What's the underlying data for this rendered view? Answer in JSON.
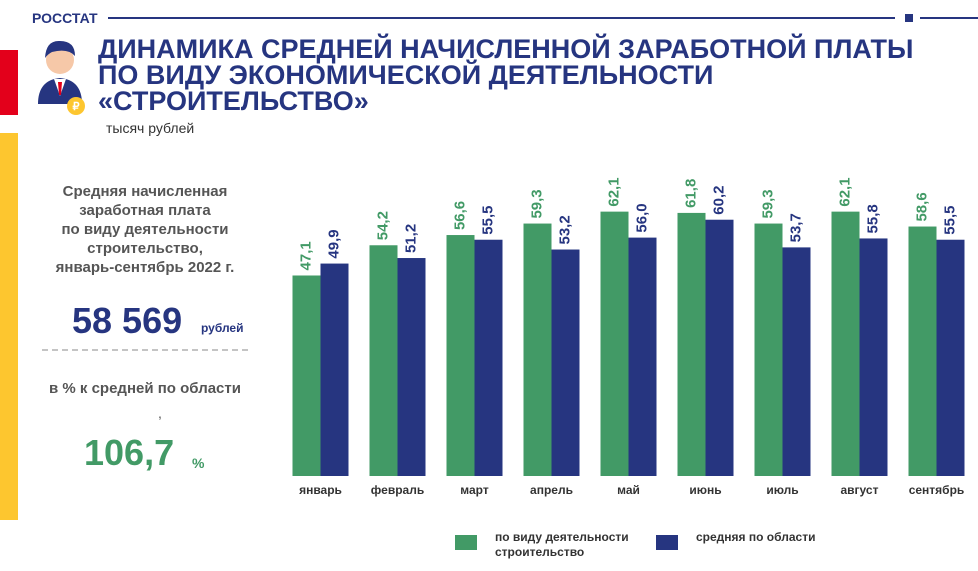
{
  "brand": "РОССТАТ",
  "unit": "тысяч рублей",
  "summary": {
    "caption": [
      "Средняя  начисленная",
      "заработная плата",
      "по виду деятельности",
      "строительство,",
      "январь-сентябрь 2022 г."
    ],
    "amount": "58 569",
    "amount_unit": "рублей",
    "ratio_caption": "в % к средней по области",
    "ratio_mark": ",",
    "ratio": "106,7",
    "ratio_unit": "%"
  },
  "chart_data": {
    "type": "bar",
    "title": [
      "ДИНАМИКА СРЕДНЕЙ НАЧИСЛЕННОЙ ЗАРАБОТНОЙ ПЛАТЫ",
      "ПО ВИДУ ЭКОНОМИЧЕСКОЙ ДЕЯТЕЛЬНОСТИ",
      "«СТРОИТЕЛЬСТВО»"
    ],
    "categories": [
      "январь",
      "февраль",
      "март",
      "апрель",
      "май",
      "июнь",
      "июль",
      "август",
      "сентябрь"
    ],
    "series": [
      {
        "name": "по виду деятельности строительство",
        "color": "#429a66",
        "values": [
          47.1,
          54.2,
          56.6,
          59.3,
          62.1,
          61.8,
          59.3,
          62.1,
          58.6
        ],
        "value_labels": [
          "47,1",
          "54,2",
          "56,6",
          "59,3",
          "62,1",
          "61,8",
          "59,3",
          "62,1",
          "58,6"
        ]
      },
      {
        "name": "средняя по области",
        "color": "#263580",
        "values": [
          49.9,
          51.2,
          55.5,
          53.2,
          56.0,
          60.2,
          53.7,
          55.8,
          55.5
        ],
        "value_labels": [
          "49,9",
          "51,2",
          "55,5",
          "53,2",
          "56,0",
          "60,2",
          "53,7",
          "55,8",
          "55,5"
        ]
      }
    ],
    "ylim": [
      0,
      70
    ]
  }
}
